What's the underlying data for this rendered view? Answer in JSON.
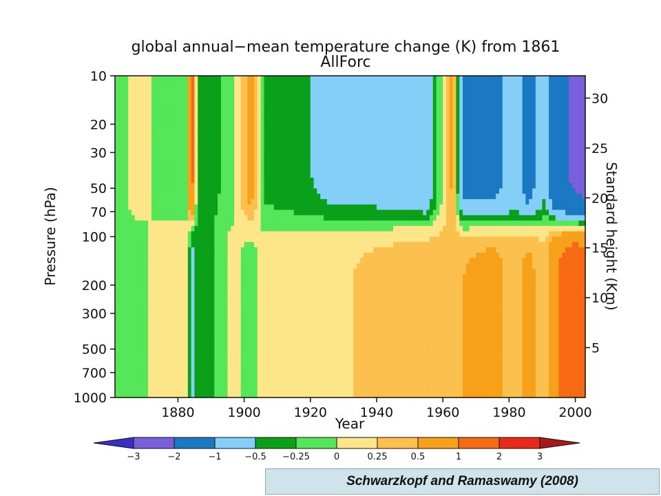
{
  "chart_data": {
    "type": "heatmap",
    "title": "global annual−mean temperature change (K) from 1861",
    "subtitle": "AllForc",
    "xlabel": "Year",
    "ylabel": "Pressure (hPa)",
    "y2label": "Standard height (Km)",
    "xlim": [
      1861,
      2003
    ],
    "ylim": [
      1000,
      10
    ],
    "y_scale": "log",
    "x_ticks": [
      1880,
      1900,
      1920,
      1940,
      1960,
      1980,
      2000
    ],
    "x_tick_labels": [
      "1880",
      "1900",
      "1920",
      "1940",
      "1960",
      "1980",
      "2000"
    ],
    "y_ticks": [
      10,
      20,
      30,
      50,
      70,
      100,
      200,
      300,
      500,
      700,
      1000
    ],
    "y_tick_labels": [
      "10",
      "20",
      "30",
      "50",
      "70",
      "100",
      "200",
      "300",
      "500",
      "700",
      "1000"
    ],
    "y2_ticks": [
      5,
      10,
      15,
      20,
      25,
      30
    ],
    "y2_tick_labels": [
      "5",
      "10",
      "15",
      "20",
      "25",
      "30"
    ],
    "colorbar": {
      "levels": [
        -3,
        -2,
        -1,
        -0.5,
        -0.25,
        0,
        0.25,
        0.5,
        1,
        2,
        3
      ],
      "labels": [
        "−3",
        "−2",
        "−1",
        "−0.5",
        "−0.25",
        "0",
        "0.25",
        "0.5",
        "1",
        "2",
        "3"
      ],
      "colors": [
        "#3a2fc4",
        "#7a5fdc",
        "#1b78c2",
        "#84cff8",
        "#0aa01a",
        "#55e65a",
        "#fde68a",
        "#fbc04d",
        "#f7a11a",
        "#f56a12",
        "#e8291a",
        "#a8191a"
      ]
    },
    "regimes": [
      {
        "x": 1861,
        "strat": -0.1,
        "trop": -0.1
      },
      {
        "x": 1868,
        "strat": 0.1,
        "trop": -0.1
      },
      {
        "x": 1875,
        "strat": -0.1,
        "trop": 0.1
      },
      {
        "x": 1883,
        "strat": -0.1,
        "trop": 0.1
      },
      {
        "x": 1884,
        "strat": 1.5,
        "trop": -0.7
      },
      {
        "x": 1886,
        "strat": -0.4,
        "trop": -0.3
      },
      {
        "x": 1890,
        "strat": -0.3,
        "trop": -0.3
      },
      {
        "x": 1896,
        "strat": -0.2,
        "trop": 0.1
      },
      {
        "x": 1902,
        "strat": 0.7,
        "trop": -0.1
      },
      {
        "x": 1906,
        "strat": -0.3,
        "trop": 0.1
      },
      {
        "x": 1915,
        "strat": -0.4,
        "trop": 0.1
      },
      {
        "x": 1925,
        "strat": -0.6,
        "trop": 0.2
      },
      {
        "x": 1940,
        "strat": -0.7,
        "trop": 0.3
      },
      {
        "x": 1955,
        "strat": -0.9,
        "trop": 0.4
      },
      {
        "x": 1963,
        "strat": 0.6,
        "trop": 0.3
      },
      {
        "x": 1966,
        "strat": -1.2,
        "trop": 0.5
      },
      {
        "x": 1975,
        "strat": -1.2,
        "trop": 0.6
      },
      {
        "x": 1982,
        "strat": -0.8,
        "trop": 0.4
      },
      {
        "x": 1986,
        "strat": -1.3,
        "trop": 0.6
      },
      {
        "x": 1991,
        "strat": -0.5,
        "trop": 0.3
      },
      {
        "x": 1993,
        "strat": -1.5,
        "trop": 0.9
      },
      {
        "x": 2000,
        "strat": -2.2,
        "trop": 1.3
      },
      {
        "x": 2003,
        "strat": -2.3,
        "trop": 1.2
      }
    ]
  },
  "citation": "Schwarzkopf and Ramaswamy (2008)"
}
